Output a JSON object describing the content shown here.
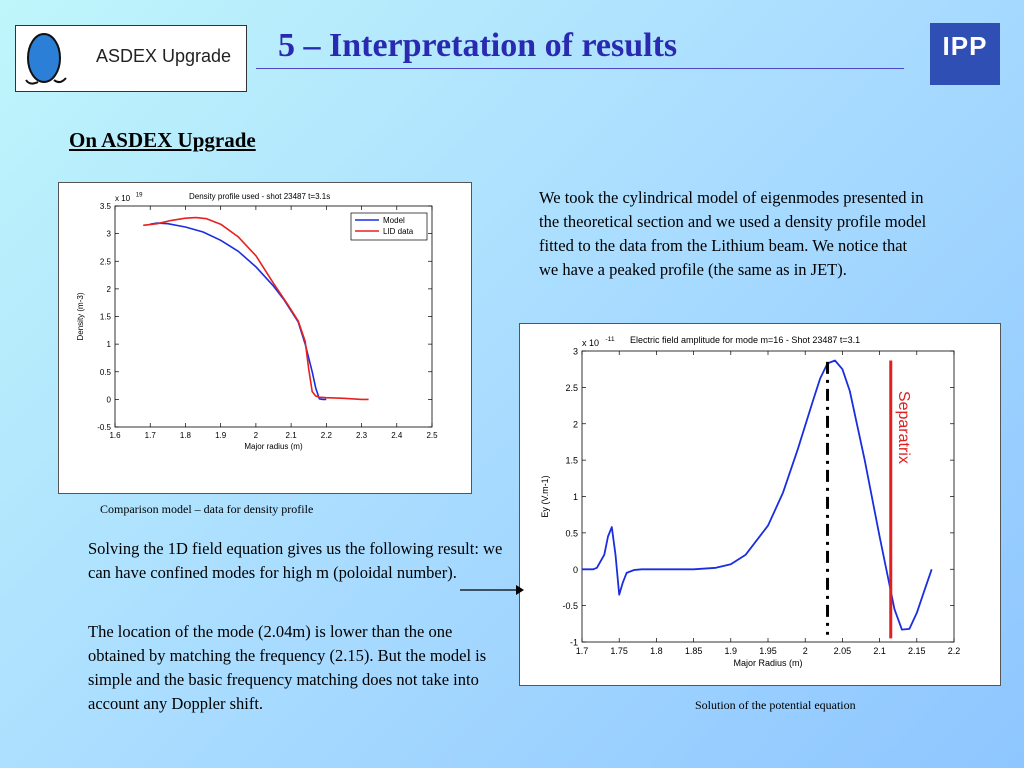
{
  "header": {
    "logo_text": "ASDEX Upgrade",
    "title": "5 – Interpretation of results",
    "ipp_text": "IPP"
  },
  "subtitle": "On ASDEX Upgrade",
  "paragraphs": {
    "p1": "We took the cylindrical model of eigenmodes presented in the theoretical section and we used a density profile model fitted to the data from the Lithium beam. We notice that we have a peaked profile (the same as in JET).",
    "p2": "Solving the 1D field equation gives us the following result: we can have confined modes for high m (poloidal number).",
    "p3": "The location of the mode (2.04m) is lower than the one obtained by matching the frequency (2.15). But the model is simple and the basic frequency matching does not take into account any Doppler shift."
  },
  "captions": {
    "chart1": "Comparison model – data for density profile",
    "chart2": "Solution of the potential equation"
  },
  "chart_data": [
    {
      "type": "line",
      "title": "Density profile used  -  shot 23487 t=3.1s",
      "xlabel": "Major radius (m)",
      "ylabel": "Density (m-3)",
      "y_multiplier": "x 10",
      "y_exponent": "19",
      "xlim": [
        1.6,
        2.5
      ],
      "ylim": [
        -0.5,
        3.5
      ],
      "xticks": [
        "1.6",
        "1.7",
        "1.8",
        "1.9",
        "2",
        "2.1",
        "2.2",
        "2.3",
        "2.4",
        "2.5"
      ],
      "yticks": [
        "-0.5",
        "0",
        "0.5",
        "1",
        "1.5",
        "2",
        "2.5",
        "3",
        "3.5"
      ],
      "legend_position": "top-right",
      "series": [
        {
          "name": "Model",
          "color": "#1a2ee0",
          "x": [
            1.7,
            1.72,
            1.75,
            1.8,
            1.85,
            1.9,
            1.95,
            2.0,
            2.05,
            2.08,
            2.12,
            2.14,
            2.16,
            2.17,
            2.18,
            2.19,
            2.2
          ],
          "y": [
            3.17,
            3.19,
            3.18,
            3.12,
            3.03,
            2.88,
            2.68,
            2.4,
            2.05,
            1.8,
            1.4,
            1.0,
            0.5,
            0.2,
            0.01,
            0.0,
            0.0
          ]
        },
        {
          "name": "LID data",
          "color": "#e82020",
          "x": [
            1.68,
            1.72,
            1.76,
            1.8,
            1.83,
            1.86,
            1.9,
            1.95,
            2.0,
            2.05,
            2.09,
            2.12,
            2.14,
            2.15,
            2.16,
            2.17,
            2.18,
            2.2,
            2.25,
            2.3,
            2.32
          ],
          "y": [
            3.15,
            3.18,
            3.24,
            3.28,
            3.29,
            3.27,
            3.17,
            2.94,
            2.6,
            2.1,
            1.72,
            1.42,
            1.05,
            0.55,
            0.14,
            0.06,
            0.04,
            0.03,
            0.02,
            0.0,
            0.0
          ]
        }
      ]
    },
    {
      "type": "line",
      "title": "Electric field amplitude for mode m=16  -  Shot 23487 t=3.1",
      "xlabel": "Major Radius (m)",
      "ylabel": "Ey (V.m-1)",
      "y_multiplier": "x 10",
      "y_exponent": "-11",
      "xlim": [
        1.7,
        2.2
      ],
      "ylim": [
        -1,
        3
      ],
      "xticks": [
        "1.7",
        "1.75",
        "1.8",
        "1.85",
        "1.9",
        "1.95",
        "2",
        "2.05",
        "2.1",
        "2.15",
        "2.2"
      ],
      "yticks": [
        "-1",
        "-0.5",
        "0",
        "0.5",
        "1",
        "1.5",
        "2",
        "2.5",
        "3"
      ],
      "series": [
        {
          "color": "#1a2ee0",
          "x": [
            1.7,
            1.715,
            1.72,
            1.73,
            1.735,
            1.74,
            1.745,
            1.75,
            1.755,
            1.76,
            1.77,
            1.78,
            1.8,
            1.85,
            1.88,
            1.9,
            1.92,
            1.95,
            1.97,
            1.99,
            2.01,
            2.02,
            2.03,
            2.04,
            2.05,
            2.06,
            2.08,
            2.1,
            2.12,
            2.13,
            2.14,
            2.15,
            2.16,
            2.17
          ],
          "y": [
            0.0,
            0.0,
            0.02,
            0.2,
            0.45,
            0.58,
            0.2,
            -0.35,
            -0.18,
            -0.05,
            -0.01,
            0.0,
            0.0,
            0.0,
            0.02,
            0.07,
            0.2,
            0.6,
            1.05,
            1.65,
            2.3,
            2.62,
            2.83,
            2.87,
            2.75,
            2.45,
            1.5,
            0.45,
            -0.55,
            -0.83,
            -0.82,
            -0.6,
            -0.3,
            0.0
          ]
        }
      ],
      "dashdot_x": 2.03,
      "separatrix_x": 2.115,
      "separatrix_label": "Separatrix",
      "separatrix_color": "#e02020"
    }
  ]
}
